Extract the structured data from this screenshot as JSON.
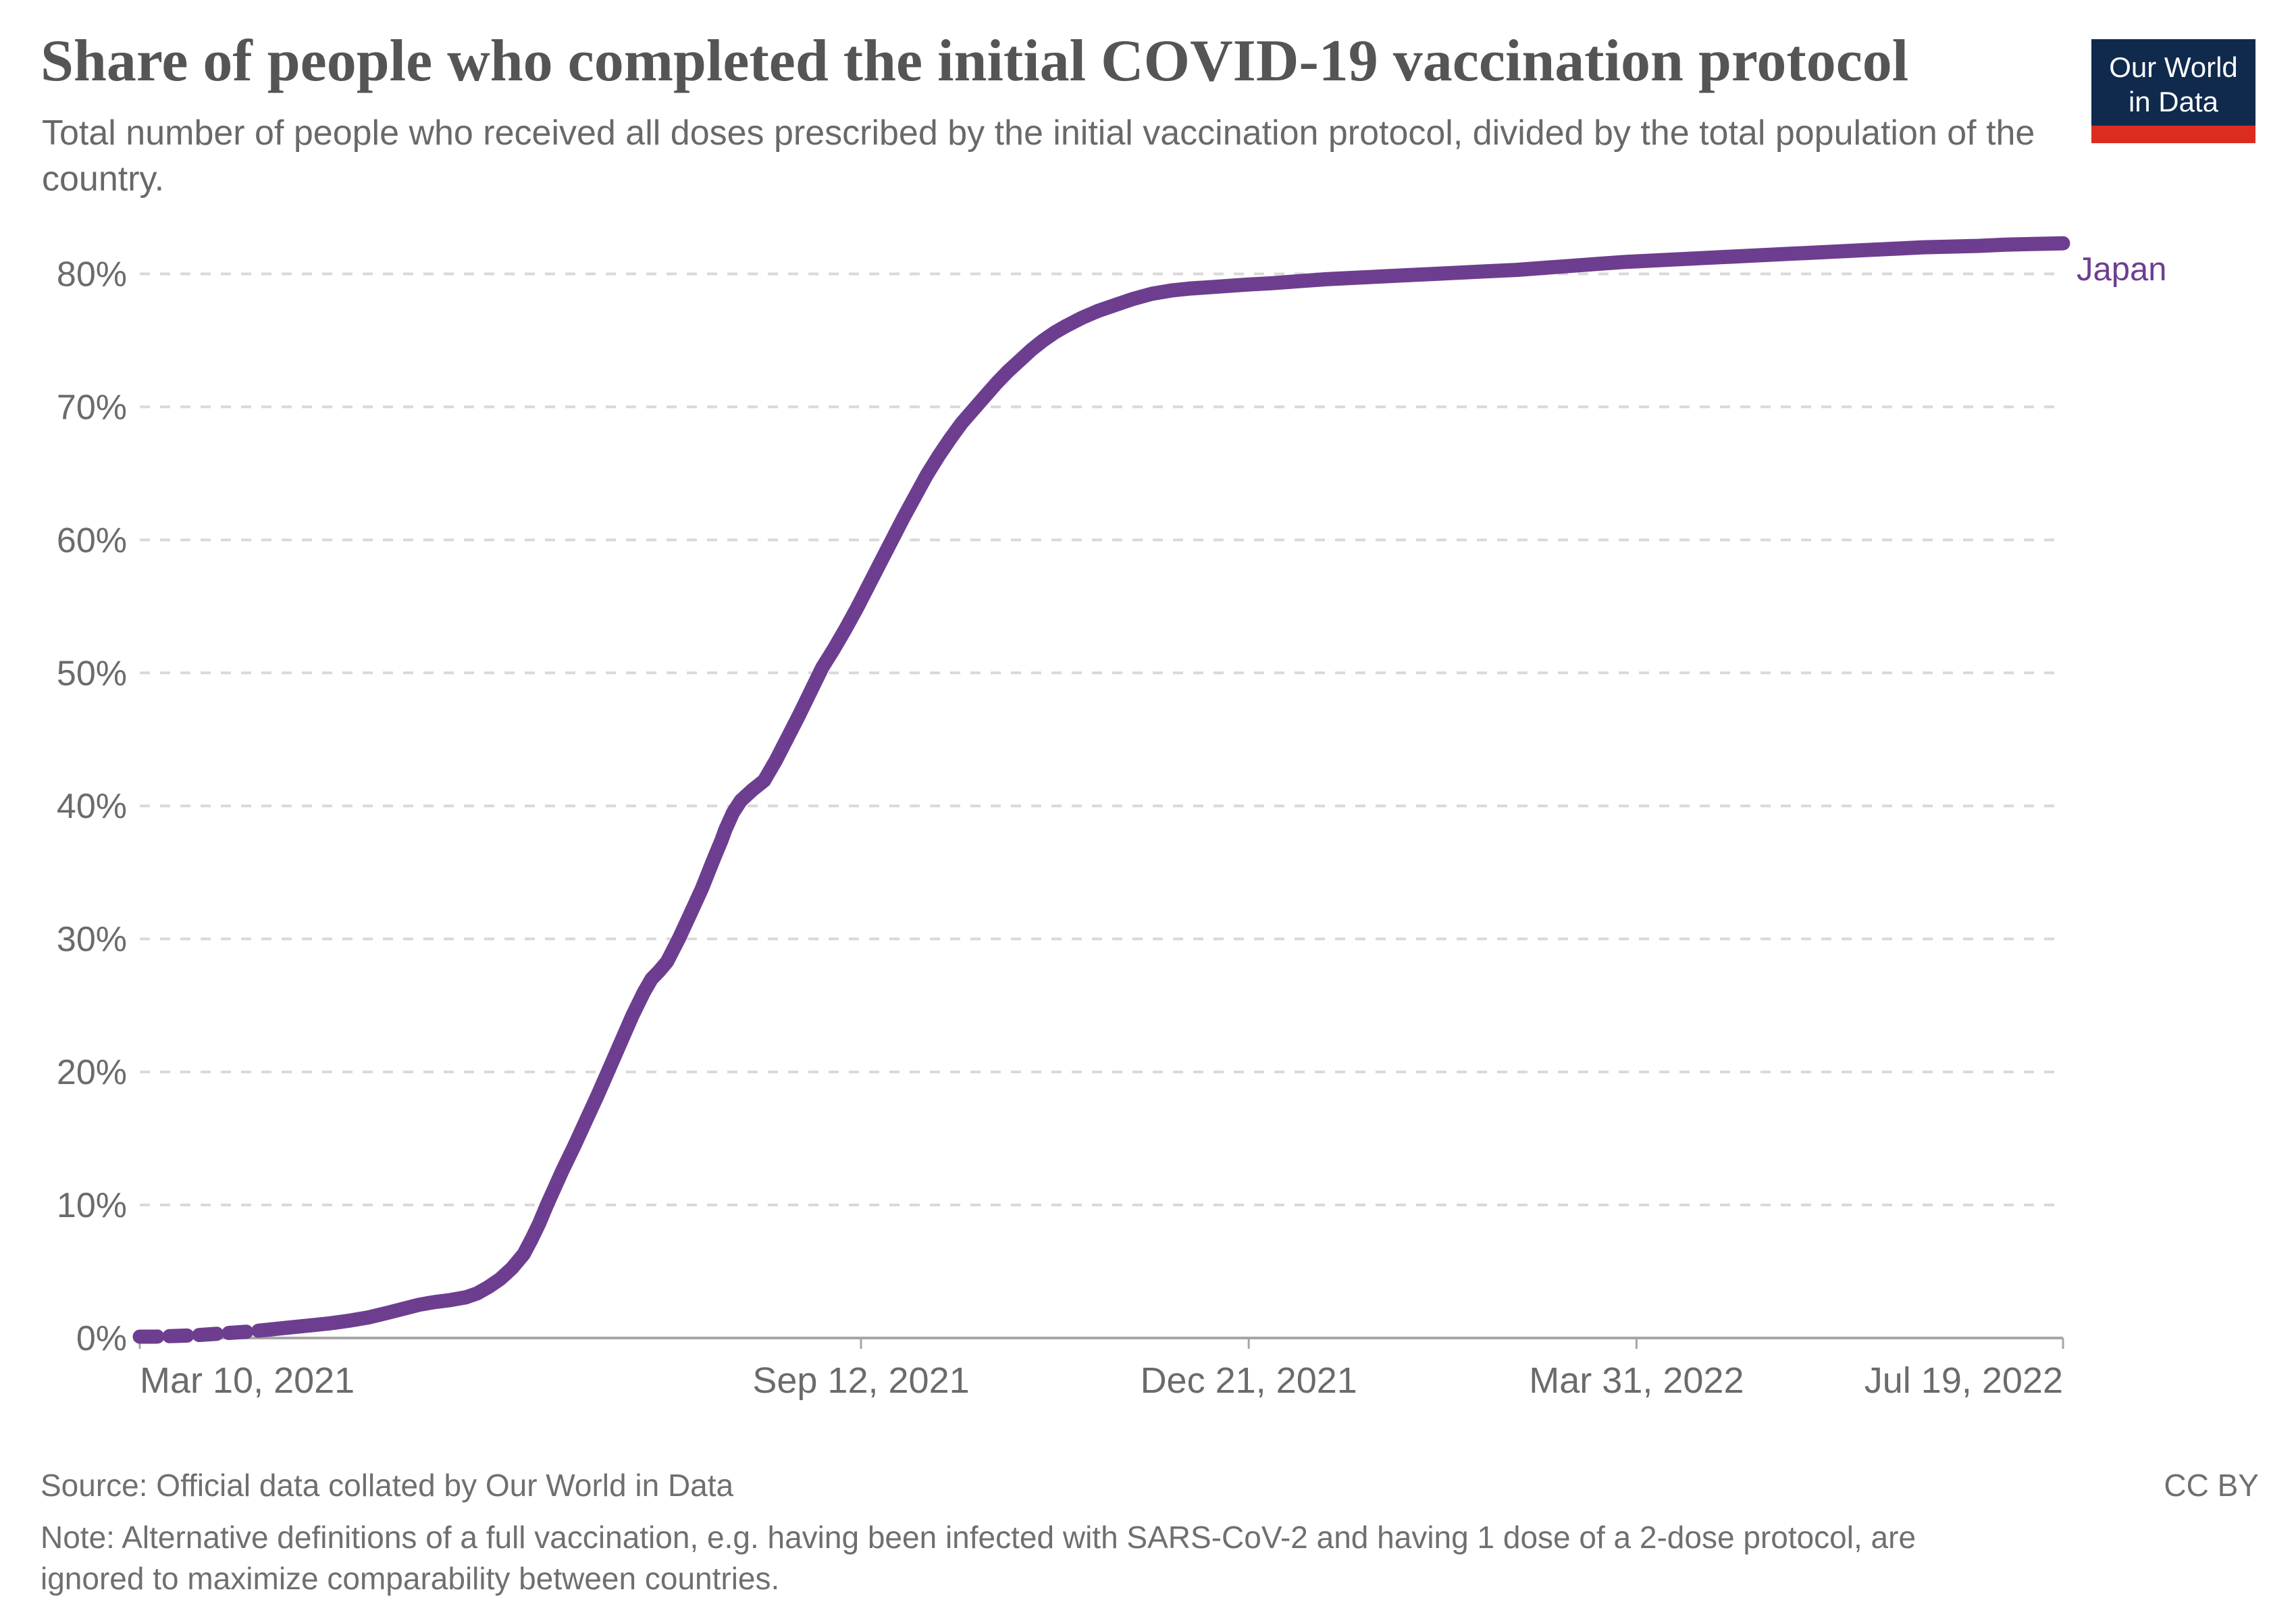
{
  "logo": {
    "line1": "Our World",
    "line2": "in Data",
    "bg_color": "#102a4e",
    "bar_color": "#dc2c20"
  },
  "footer": {
    "source": "Source: Official data collated by Our World in Data",
    "license": "CC BY",
    "note_line1": "Note: Alternative definitions of a full vaccination, e.g. having been infected with SARS-CoV-2 and having 1 dose of a 2-dose protocol, are",
    "note_line2": "ignored to maximize comparability between countries."
  },
  "chart_data": {
    "type": "line",
    "title": "Share of people who completed the initial COVID-19 vaccination protocol",
    "subtitle": "Total number of people who received all doses prescribed by the initial vaccination protocol, divided by the total population of the country.",
    "xlabel": "",
    "ylabel": "",
    "ylim": [
      0,
      83.5
    ],
    "x_range_days": [
      0,
      496
    ],
    "grid": "dashed-horizontal",
    "legend": "end-of-line-label",
    "y_ticks": [
      0,
      10,
      20,
      30,
      40,
      50,
      60,
      70,
      80
    ],
    "y_tick_suffix": "%",
    "x_ticks": [
      {
        "label": "Mar 10, 2021",
        "day": 0
      },
      {
        "label": "Sep 12, 2021",
        "day": 186
      },
      {
        "label": "Dec 21, 2021",
        "day": 286
      },
      {
        "label": "Mar 31, 2022",
        "day": 386
      },
      {
        "label": "Jul 19, 2022",
        "day": 496
      }
    ],
    "series": [
      {
        "name": "Japan",
        "color": "#6d3e90",
        "dashed_until_day": 34,
        "points": [
          [
            0,
            0.1
          ],
          [
            4,
            0.1
          ],
          [
            9,
            0.15
          ],
          [
            14,
            0.2
          ],
          [
            19,
            0.3
          ],
          [
            24,
            0.4
          ],
          [
            29,
            0.5
          ],
          [
            34,
            0.65
          ],
          [
            39,
            0.8
          ],
          [
            44,
            0.95
          ],
          [
            49,
            1.1
          ],
          [
            54,
            1.3
          ],
          [
            59,
            1.55
          ],
          [
            64,
            1.9
          ],
          [
            68,
            2.2
          ],
          [
            72,
            2.5
          ],
          [
            76,
            2.7
          ],
          [
            80,
            2.85
          ],
          [
            84,
            3.05
          ],
          [
            87,
            3.35
          ],
          [
            90,
            3.85
          ],
          [
            93,
            4.45
          ],
          [
            96,
            5.25
          ],
          [
            99,
            6.3
          ],
          [
            101,
            7.4
          ],
          [
            103,
            8.6
          ],
          [
            105,
            10
          ],
          [
            107,
            11.3
          ],
          [
            109,
            12.6
          ],
          [
            112,
            14.4
          ],
          [
            115,
            16.3
          ],
          [
            118,
            18.2
          ],
          [
            121,
            20.2
          ],
          [
            124,
            22.2
          ],
          [
            127,
            24.2
          ],
          [
            130,
            26
          ],
          [
            132,
            27
          ],
          [
            134,
            27.6
          ],
          [
            136,
            28.3
          ],
          [
            139,
            30
          ],
          [
            142,
            31.9
          ],
          [
            145,
            33.8
          ],
          [
            148,
            36
          ],
          [
            150,
            37.4
          ],
          [
            151,
            38.2
          ],
          [
            153,
            39.5
          ],
          [
            155,
            40.4
          ],
          [
            158,
            41.2
          ],
          [
            161,
            41.9
          ],
          [
            164,
            43.4
          ],
          [
            167,
            45.1
          ],
          [
            170,
            46.8
          ],
          [
            172,
            48
          ],
          [
            174,
            49.2
          ],
          [
            176,
            50.4
          ],
          [
            179,
            51.8
          ],
          [
            182,
            53.3
          ],
          [
            185,
            54.9
          ],
          [
            188,
            56.6
          ],
          [
            191,
            58.3
          ],
          [
            194,
            60
          ],
          [
            197,
            61.7
          ],
          [
            200,
            63.3
          ],
          [
            203,
            64.9
          ],
          [
            206,
            66.3
          ],
          [
            209,
            67.6
          ],
          [
            212,
            68.8
          ],
          [
            215,
            69.8
          ],
          [
            218,
            70.8
          ],
          [
            221,
            71.8
          ],
          [
            224,
            72.7
          ],
          [
            227,
            73.5
          ],
          [
            230,
            74.3
          ],
          [
            233,
            75
          ],
          [
            236,
            75.6
          ],
          [
            239,
            76.1
          ],
          [
            243,
            76.7
          ],
          [
            247,
            77.2
          ],
          [
            251,
            77.6
          ],
          [
            256,
            78.1
          ],
          [
            261,
            78.5
          ],
          [
            266,
            78.75
          ],
          [
            271,
            78.9
          ],
          [
            276,
            79
          ],
          [
            281,
            79.1
          ],
          [
            286,
            79.2
          ],
          [
            292,
            79.3
          ],
          [
            299,
            79.45
          ],
          [
            306,
            79.6
          ],
          [
            313,
            79.7
          ],
          [
            320,
            79.8
          ],
          [
            327,
            79.9
          ],
          [
            334,
            80
          ],
          [
            341,
            80.1
          ],
          [
            348,
            80.2
          ],
          [
            355,
            80.3
          ],
          [
            362,
            80.45
          ],
          [
            369,
            80.6
          ],
          [
            376,
            80.75
          ],
          [
            383,
            80.9
          ],
          [
            390,
            81
          ],
          [
            397,
            81.1
          ],
          [
            404,
            81.2
          ],
          [
            411,
            81.3
          ],
          [
            418,
            81.4
          ],
          [
            425,
            81.5
          ],
          [
            432,
            81.6
          ],
          [
            439,
            81.7
          ],
          [
            446,
            81.8
          ],
          [
            453,
            81.9
          ],
          [
            460,
            82
          ],
          [
            467,
            82.05
          ],
          [
            474,
            82.1
          ],
          [
            481,
            82.2
          ],
          [
            488,
            82.25
          ],
          [
            496,
            82.3
          ]
        ]
      }
    ],
    "style": {
      "line_width": 21,
      "grid_color": "#d9d9d9",
      "axis_color": "#a6a6a6",
      "tick_label_color": "#6b6b6b"
    }
  }
}
